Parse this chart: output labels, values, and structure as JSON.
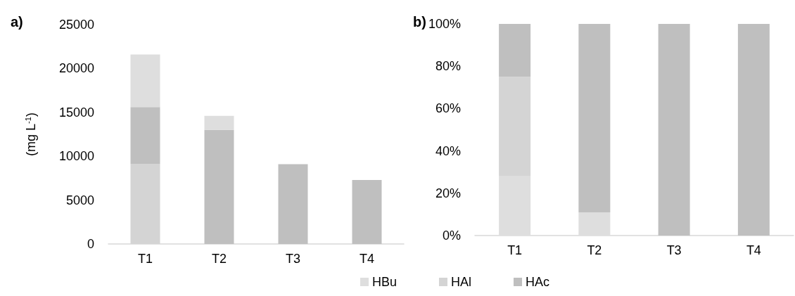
{
  "chart_data": [
    {
      "type": "bar",
      "title": "a)",
      "ylabel": "(mg L$^{-1}$)",
      "categories": [
        "T1",
        "T2",
        "T3",
        "T4"
      ],
      "stacked": true,
      "ylim": [
        0,
        25000
      ],
      "yticks": [
        0,
        5000,
        10000,
        15000,
        20000,
        25000
      ],
      "grid": false,
      "series": [
        {
          "color": "#d4d4d4",
          "values": [
            9100,
            0,
            0,
            0
          ]
        },
        {
          "color": "#bfbfbf",
          "values": [
            6500,
            13000,
            9100,
            7300
          ]
        },
        {
          "color": "#dedede",
          "values": [
            6000,
            1600,
            0,
            0
          ]
        }
      ]
    },
    {
      "type": "bar",
      "title": "b)",
      "categories": [
        "T1",
        "T2",
        "T3",
        "T4"
      ],
      "stacked": true,
      "ylim": [
        0,
        100
      ],
      "yticks": [
        {
          "value": 0,
          "label": "0%"
        },
        {
          "value": 20,
          "label": "20%"
        },
        {
          "value": 40,
          "label": "40%"
        },
        {
          "value": 60,
          "label": "60%"
        },
        {
          "value": 80,
          "label": "80%"
        },
        {
          "value": 100,
          "label": "100%"
        }
      ],
      "grid": false,
      "legend": "bottom",
      "series": [
        {
          "name": "HBu",
          "color": "#dedede",
          "values": [
            28,
            11,
            0,
            0
          ]
        },
        {
          "name": "HAl",
          "color": "#d4d4d4",
          "values": [
            47,
            0,
            0,
            0
          ]
        },
        {
          "name": "HAc",
          "color": "#bfbfbf",
          "values": [
            25,
            89,
            100,
            100
          ]
        }
      ]
    }
  ]
}
